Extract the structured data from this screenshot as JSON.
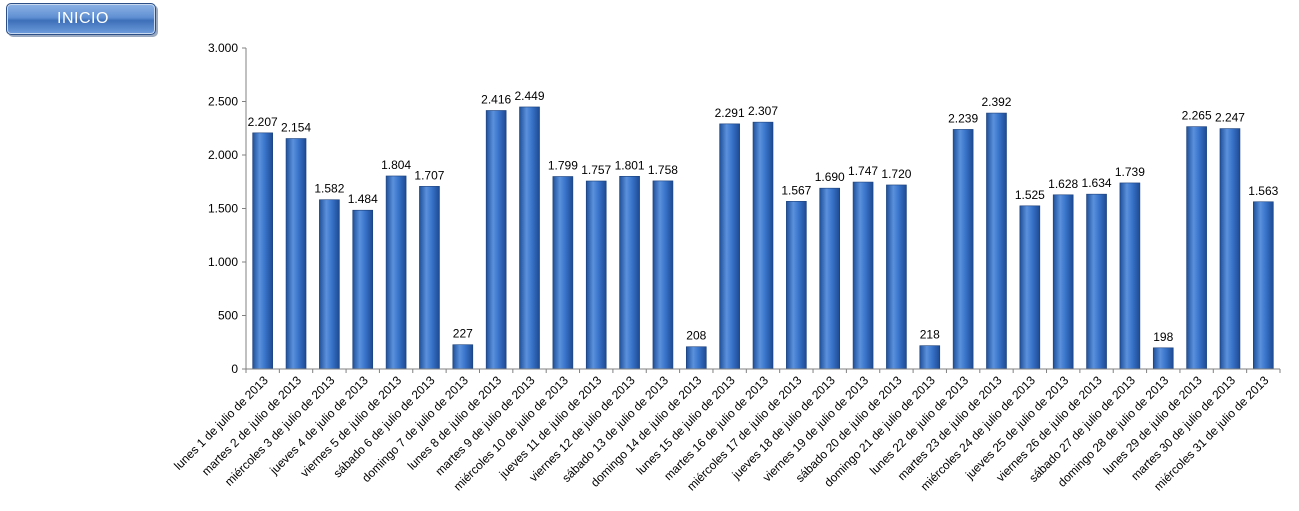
{
  "header": {
    "inicio_label": "INICIO"
  },
  "colors": {
    "bar": "#2e6cc4",
    "bar_dark": "#1f4f99",
    "bar_light": "#6d9fe0"
  },
  "chart_data": {
    "type": "bar",
    "title": "",
    "xlabel": "",
    "ylabel": "",
    "ylim": [
      0,
      3000
    ],
    "yticks": [
      0,
      500,
      1000,
      1500,
      2000,
      2500,
      3000
    ],
    "ytick_labels": [
      "0",
      "500",
      "1.000",
      "1.500",
      "2.000",
      "2.500",
      "3.000"
    ],
    "grid": false,
    "legend": "none",
    "categories": [
      "lunes 1 de julio de 2013",
      "martes 2 de julio de 2013",
      "miércoles 3 de julio de 2013",
      "jueves 4 de julio de 2013",
      "viernes 5 de julio de 2013",
      "sábado 6 de julio de 2013",
      "domingo 7 de julio de 2013",
      "lunes 8 de julio de 2013",
      "martes 9 de julio de 2013",
      "miércoles 10 de julio de 2013",
      "jueves 11 de julio de 2013",
      "viernes 12 de julio de 2013",
      "sábado 13 de julio de 2013",
      "domingo 14 de julio de 2013",
      "lunes 15 de julio de 2013",
      "martes 16 de julio de 2013",
      "miércoles 17 de julio de 2013",
      "jueves 18 de julio de 2013",
      "viernes 19 de julio de 2013",
      "sábado 20 de julio de 2013",
      "domingo 21 de julio de 2013",
      "lunes 22 de julio de 2013",
      "martes 23 de julio de 2013",
      "miércoles 24 de julio de 2013",
      "jueves 25 de julio de 2013",
      "viernes 26 de julio de 2013",
      "sábado 27 de julio de 2013",
      "domingo 28 de julio de 2013",
      "lunes 29 de julio de 2013",
      "martes 30 de julio de 2013",
      "miércoles 31 de julio de 2013"
    ],
    "values": [
      2207,
      2154,
      1582,
      1484,
      1804,
      1707,
      227,
      2416,
      2449,
      1799,
      1757,
      1801,
      1758,
      208,
      2291,
      2307,
      1567,
      1690,
      1747,
      1720,
      218,
      2239,
      2392,
      1525,
      1628,
      1634,
      1739,
      198,
      2265,
      2247,
      1563
    ],
    "value_labels": [
      "2.207",
      "2.154",
      "1.582",
      "1.484",
      "1.804",
      "1.707",
      "227",
      "2.416",
      "2.449",
      "1.799",
      "1.757",
      "1.801",
      "1.758",
      "208",
      "2.291",
      "2.307",
      "1.567",
      "1.690",
      "1.747",
      "1.720",
      "218",
      "2.239",
      "2.392",
      "1.525",
      "1.628",
      "1.634",
      "1.739",
      "198",
      "2.265",
      "2.247",
      "1.563"
    ]
  }
}
